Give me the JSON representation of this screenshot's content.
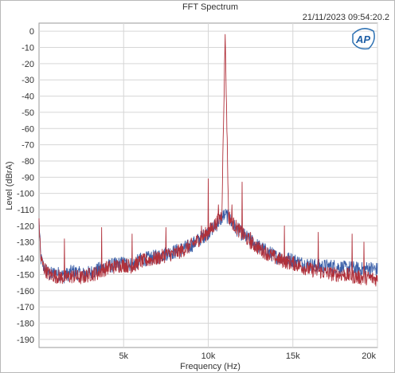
{
  "chart_data": {
    "type": "line",
    "title": "FFT Spectrum",
    "timestamp": "21/11/2023 09:54:20.2",
    "logo_text": "AP",
    "xlabel": "Frequency (Hz)",
    "ylabel": "Level (dBrA)",
    "xlim": [
      0,
      20000
    ],
    "ylim": [
      -195,
      5
    ],
    "x_ticks": [
      {
        "value": 5000,
        "label": "5k"
      },
      {
        "value": 10000,
        "label": "10k"
      },
      {
        "value": 15000,
        "label": "15k"
      },
      {
        "value": 20000,
        "label": "20k"
      }
    ],
    "y_ticks": [
      0,
      -10,
      -20,
      -30,
      -40,
      -50,
      -60,
      -70,
      -80,
      -90,
      -100,
      -110,
      -120,
      -130,
      -140,
      -150,
      -160,
      -170,
      -180,
      -190
    ],
    "grid": true,
    "series": [
      {
        "color": "#3b5fa8",
        "points": [
          [
            0,
            -117
          ],
          [
            100,
            -140
          ],
          [
            300,
            -146
          ],
          [
            600,
            -150
          ],
          [
            1000,
            -149
          ],
          [
            1500,
            -151
          ],
          [
            2000,
            -148
          ],
          [
            2500,
            -150
          ],
          [
            3000,
            -149
          ],
          [
            3500,
            -147
          ],
          [
            4000,
            -145
          ],
          [
            4500,
            -144
          ],
          [
            5000,
            -143
          ],
          [
            5500,
            -144
          ],
          [
            6000,
            -141
          ],
          [
            6500,
            -140
          ],
          [
            7000,
            -139
          ],
          [
            7500,
            -137
          ],
          [
            8000,
            -136
          ],
          [
            8500,
            -134
          ],
          [
            9000,
            -132
          ],
          [
            9500,
            -128
          ],
          [
            10000,
            -124
          ],
          [
            10500,
            -119
          ],
          [
            10800,
            -115
          ],
          [
            11000,
            -113
          ],
          [
            11200,
            -115
          ],
          [
            11500,
            -120
          ],
          [
            12000,
            -125
          ],
          [
            12500,
            -129
          ],
          [
            13000,
            -133
          ],
          [
            13500,
            -136
          ],
          [
            14000,
            -139
          ],
          [
            14500,
            -140
          ],
          [
            15000,
            -141
          ],
          [
            15500,
            -143
          ],
          [
            16000,
            -144
          ],
          [
            16500,
            -145
          ],
          [
            17000,
            -145
          ],
          [
            17500,
            -145
          ],
          [
            18000,
            -146
          ],
          [
            18500,
            -146
          ],
          [
            19000,
            -147
          ],
          [
            19500,
            -146
          ],
          [
            20000,
            -147
          ]
        ]
      },
      {
        "color": "#b0303a",
        "points": [
          [
            0,
            -116
          ],
          [
            100,
            -140
          ],
          [
            300,
            -146
          ],
          [
            600,
            -150
          ],
          [
            1000,
            -151
          ],
          [
            1500,
            -152
          ],
          [
            2000,
            -151
          ],
          [
            2500,
            -152
          ],
          [
            3000,
            -150
          ],
          [
            3500,
            -149
          ],
          [
            4000,
            -146
          ],
          [
            4500,
            -145
          ],
          [
            5000,
            -144
          ],
          [
            5500,
            -145
          ],
          [
            6000,
            -142
          ],
          [
            6500,
            -141
          ],
          [
            7000,
            -140
          ],
          [
            7500,
            -138
          ],
          [
            8000,
            -137
          ],
          [
            8500,
            -135
          ],
          [
            9000,
            -132
          ],
          [
            9500,
            -128
          ],
          [
            10000,
            -124
          ],
          [
            10500,
            -118
          ],
          [
            10800,
            -113
          ],
          [
            11000,
            -2
          ],
          [
            11200,
            -114
          ],
          [
            11500,
            -119
          ],
          [
            12000,
            -125
          ],
          [
            12500,
            -130
          ],
          [
            13000,
            -134
          ],
          [
            13500,
            -137
          ],
          [
            14000,
            -140
          ],
          [
            14500,
            -142
          ],
          [
            15000,
            -143
          ],
          [
            15500,
            -145
          ],
          [
            16000,
            -147
          ],
          [
            16500,
            -148
          ],
          [
            17000,
            -149
          ],
          [
            17500,
            -150
          ],
          [
            18000,
            -150
          ],
          [
            18500,
            -151
          ],
          [
            19000,
            -152
          ],
          [
            19500,
            -152
          ],
          [
            20000,
            -153
          ]
        ],
        "spurs": [
          [
            1500,
            -128
          ],
          [
            3700,
            -121
          ],
          [
            5500,
            -125
          ],
          [
            7500,
            -121
          ],
          [
            9600,
            -120
          ],
          [
            10000,
            -91
          ],
          [
            10600,
            -107
          ],
          [
            11400,
            -107
          ],
          [
            12000,
            -93
          ],
          [
            12500,
            -124
          ],
          [
            14500,
            -120
          ],
          [
            16500,
            -124
          ],
          [
            18500,
            -125
          ],
          [
            19200,
            -130
          ]
        ]
      }
    ]
  }
}
